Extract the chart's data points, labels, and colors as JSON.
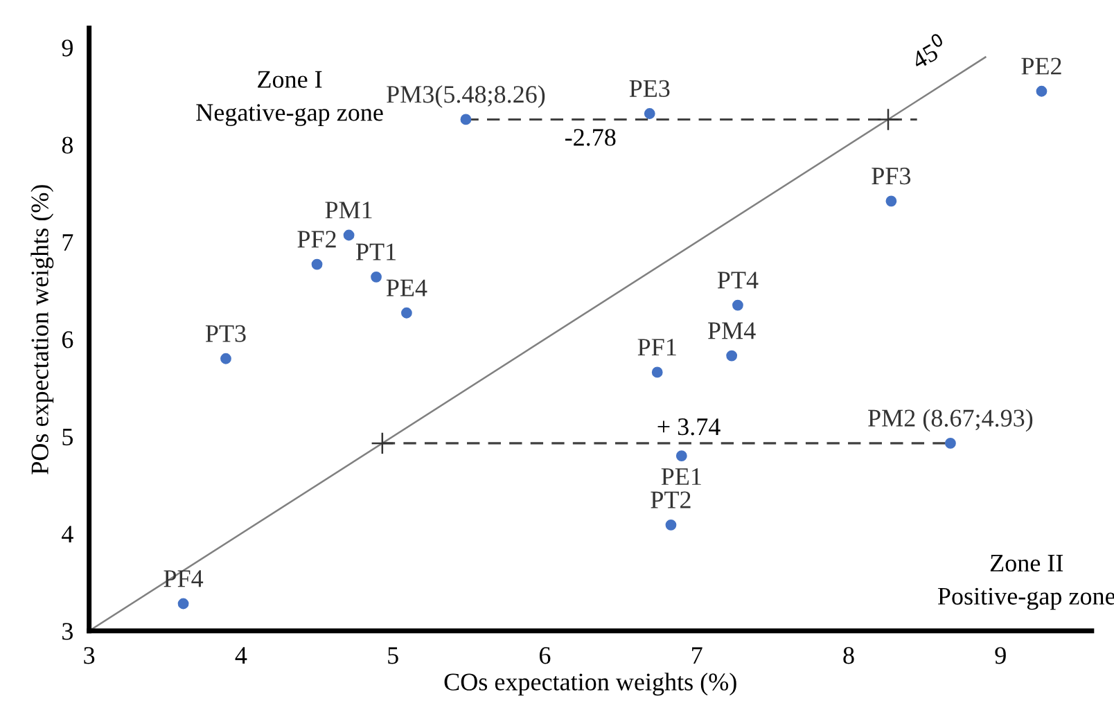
{
  "chart_data": {
    "type": "scatter",
    "xlabel": "COs expectation weights (%)",
    "ylabel": "POs expectation weights (%)",
    "xlim": [
      3,
      9.6
    ],
    "ylim": [
      3,
      9.2
    ],
    "xticks": [
      3,
      4,
      5,
      6,
      7,
      8,
      9
    ],
    "yticks": [
      3,
      4,
      5,
      6,
      7,
      8,
      9
    ],
    "grid": false,
    "legend": false,
    "series": [
      {
        "type": "line",
        "color": "#808080",
        "x": [
          3,
          8.9
        ],
        "values": [
          3,
          8.9
        ],
        "marker": "none",
        "line_style": "solid"
      },
      {
        "type": "line",
        "color": "#404040",
        "x": [
          5.48,
          8.45
        ],
        "values": [
          8.26,
          8.26
        ],
        "marker": "none",
        "line_style": "dashed"
      },
      {
        "type": "line",
        "color": "#404040",
        "x": [
          4.93,
          8.67
        ],
        "values": [
          4.93,
          4.93
        ],
        "marker": "none",
        "line_style": "dashed"
      },
      {
        "type": "scatter",
        "color": "#333333",
        "x": [
          4.93,
          8.26
        ],
        "values": [
          4.93,
          8.26
        ],
        "marker": "cross"
      },
      {
        "color": "#4472c4",
        "marker": "circle",
        "x": [
          3.62,
          3.9,
          4.5,
          4.71,
          4.89,
          5.09,
          5.48,
          6.69,
          9.27,
          8.28,
          7.27,
          7.23,
          6.74,
          8.67,
          6.9,
          6.83
        ],
        "values": [
          3.28,
          5.8,
          6.77,
          7.07,
          6.64,
          6.27,
          8.26,
          8.32,
          8.55,
          7.42,
          6.35,
          5.83,
          5.66,
          4.93,
          4.8,
          4.09
        ]
      }
    ],
    "annotations": [
      "Zone I\nNegative-gap zone",
      "Zone II\nPositive-gap zone",
      {
        "text": "PF4",
        "x": 3.62,
        "y": 3.28
      },
      {
        "text": "PT3",
        "x": 3.9,
        "y": 5.8
      },
      {
        "text": "PF2",
        "x": 4.5,
        "y": 6.77
      },
      {
        "text": "PM1",
        "x": 4.71,
        "y": 7.07
      },
      {
        "text": "PT1",
        "x": 4.89,
        "y": 6.64
      },
      {
        "text": "PE4",
        "x": 5.09,
        "y": 6.27
      },
      {
        "text": "PM3(5.48;8.26)",
        "x": 5.48,
        "y": 8.26
      },
      {
        "text": "PE3",
        "x": 6.69,
        "y": 8.32
      },
      {
        "text": "PE2",
        "x": 9.27,
        "y": 8.55
      },
      {
        "text": "PF3",
        "x": 8.28,
        "y": 7.42
      },
      {
        "text": "PT4",
        "x": 7.27,
        "y": 6.35
      },
      {
        "text": "PM4",
        "x": 7.23,
        "y": 5.83
      },
      {
        "text": "PF1",
        "x": 6.74,
        "y": 5.66
      },
      {
        "text": "PM2 (8.67;4.93)",
        "x": 8.67,
        "y": 4.93
      },
      {
        "text": "PE1",
        "x": 6.9,
        "y": 4.8
      },
      {
        "text": "PT2",
        "x": 6.83,
        "y": 4.09
      },
      "-2.78",
      "+ 3.74",
      "45$^{0}$"
    ]
  }
}
